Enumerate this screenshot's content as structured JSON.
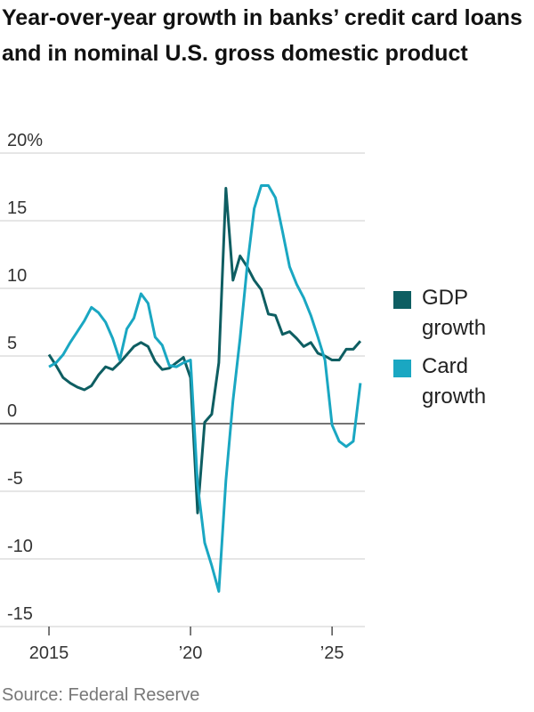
{
  "chart_data": {
    "type": "line",
    "title": "Year-over-year growth in banks’ credit card loans and in nominal U.S. gross domestic product",
    "source": "Source: Federal Reserve",
    "x": [
      2015,
      2015.25,
      2015.5,
      2015.75,
      2016,
      2016.25,
      2016.5,
      2016.75,
      2017,
      2017.25,
      2017.5,
      2017.75,
      2018,
      2018.25,
      2018.5,
      2018.75,
      2019,
      2019.25,
      2019.5,
      2019.75,
      2020,
      2020.25,
      2020.5,
      2020.75,
      2021,
      2021.25,
      2021.5,
      2021.75,
      2022,
      2022.25,
      2022.5,
      2022.75,
      2023,
      2023.25,
      2023.5,
      2023.75,
      2024,
      2024.25,
      2024.5,
      2024.75,
      2025,
      2025.25,
      2025.5,
      2025.75,
      2026
    ],
    "series": [
      {
        "name": "GDP growth",
        "color": "#0e5e62",
        "values": [
          5.1,
          4.3,
          3.4,
          3.0,
          2.7,
          2.5,
          2.8,
          3.6,
          4.2,
          4.0,
          4.5,
          5.1,
          5.7,
          6.0,
          5.7,
          4.6,
          4.0,
          4.1,
          4.5,
          4.9,
          3.4,
          -6.6,
          0.1,
          0.7,
          4.5,
          17.4,
          10.6,
          12.4,
          11.6,
          10.6,
          9.9,
          8.1,
          8.0,
          6.6,
          6.8,
          6.3,
          5.7,
          6.0,
          5.2,
          5.0,
          4.7,
          4.7,
          5.5,
          5.5,
          6.1
        ]
      },
      {
        "name": "Card growth",
        "color": "#1aa7c2",
        "values": [
          4.2,
          4.5,
          5.1,
          6.0,
          6.8,
          7.6,
          8.6,
          8.2,
          7.5,
          6.3,
          4.7,
          7.0,
          7.8,
          9.6,
          8.9,
          6.4,
          5.8,
          4.3,
          4.2,
          4.5,
          4.7,
          -4.5,
          -8.8,
          -10.5,
          -12.4,
          -4.2,
          1.7,
          6.3,
          11.6,
          15.9,
          17.6,
          17.6,
          16.7,
          14.2,
          11.6,
          10.3,
          9.3,
          8.0,
          6.4,
          4.7,
          -0.1,
          -1.3,
          -1.7,
          -1.3,
          3.0
        ]
      }
    ],
    "xlim": [
      2013.27,
      2026.16
    ],
    "xticks": [
      2015,
      {
        "value": 2020,
        "label": "’20"
      },
      {
        "value": 2025,
        "label": "’25"
      }
    ],
    "ylim": [
      -15,
      20
    ],
    "yticks": [
      {
        "value": 20,
        "label": "20%"
      },
      15,
      10,
      5,
      0,
      -5,
      -10,
      -15
    ],
    "grid": true
  }
}
